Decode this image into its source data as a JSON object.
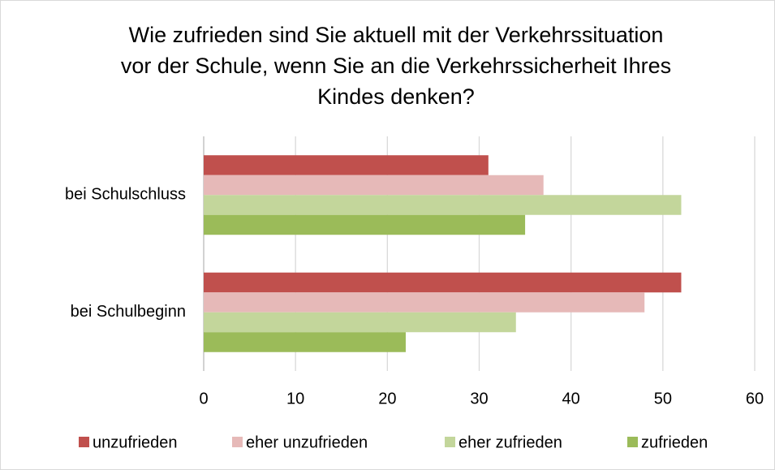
{
  "chart_data": {
    "type": "barh",
    "title": "Wie zufrieden sind Sie aktuell mit der Verkehrssituation vor der Schule, wenn Sie an die Verkehrssicherheit Ihres Kindes denken?",
    "categories": [
      "bei Schulschluss",
      "bei Schulbeginn"
    ],
    "series": [
      {
        "name": "unzufrieden",
        "color": "#c0504d",
        "values": [
          31,
          52
        ]
      },
      {
        "name": "eher unzufrieden",
        "color": "#e6b9b8",
        "values": [
          37,
          48
        ]
      },
      {
        "name": "eher zufrieden",
        "color": "#c3d69b",
        "values": [
          52,
          34
        ]
      },
      {
        "name": "zufrieden",
        "color": "#9bbb59",
        "values": [
          35,
          22
        ]
      }
    ],
    "xlim": [
      0,
      60
    ],
    "xticks": [
      0,
      10,
      20,
      30,
      40,
      50,
      60
    ],
    "grid": true,
    "legend": "bottom"
  }
}
